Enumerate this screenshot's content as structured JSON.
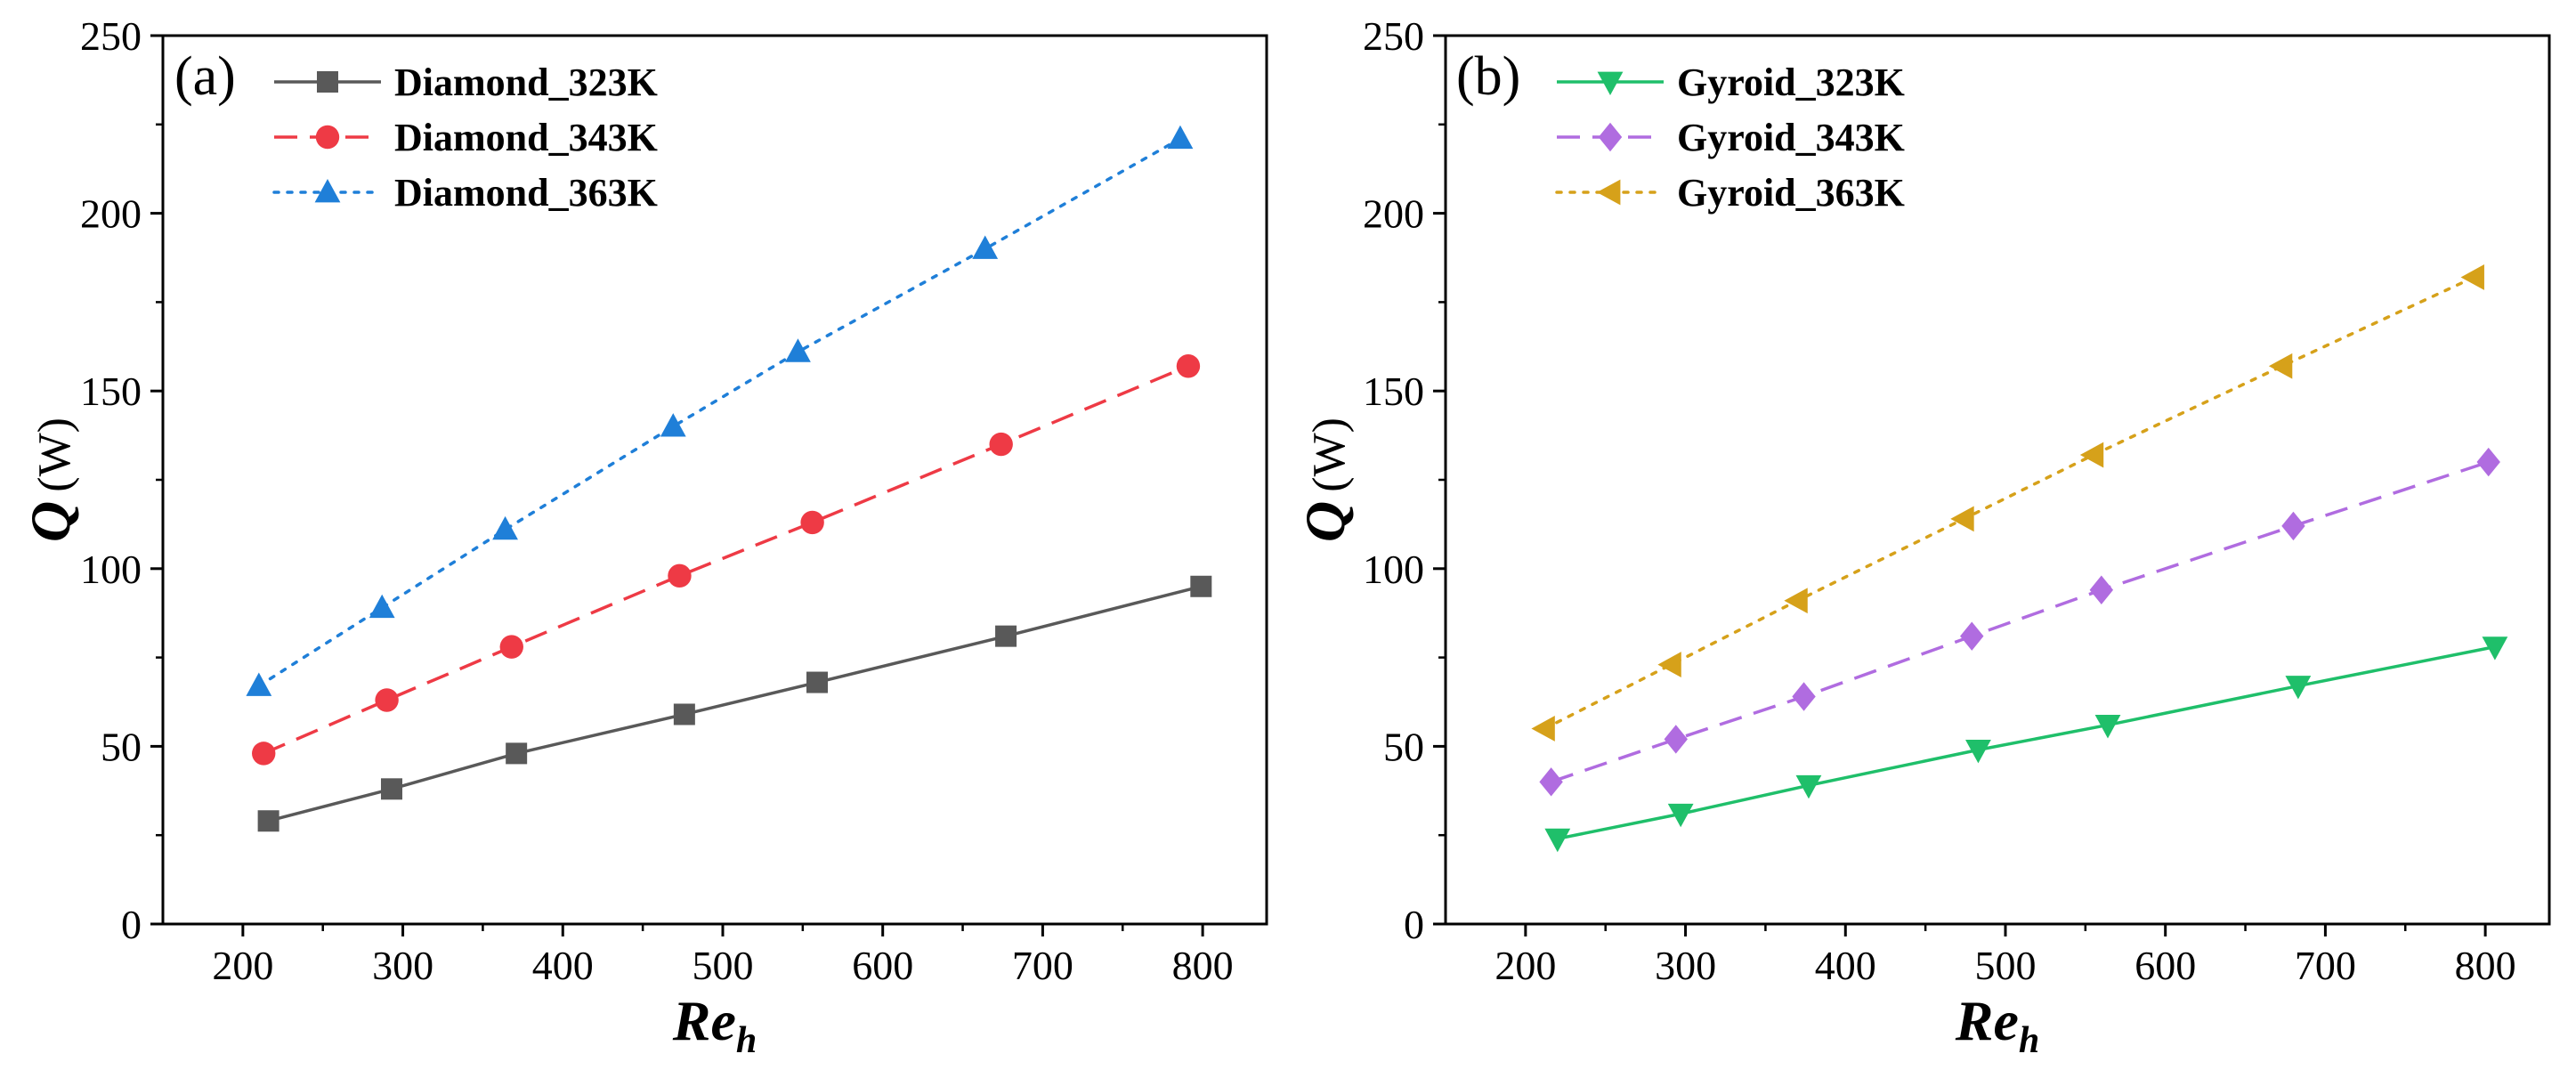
{
  "chart_data": [
    {
      "type": "line",
      "panel_label": "(a)",
      "xlabel": "Re",
      "xlabel_sub": "h",
      "ylabel": "Q",
      "ylabel_unit": "(W)",
      "xlim": [
        150,
        840
      ],
      "ylim": [
        0,
        250
      ],
      "xticks": [
        200,
        300,
        400,
        500,
        600,
        700,
        800
      ],
      "yticks": [
        0,
        50,
        100,
        150,
        200,
        250
      ],
      "legend_position": "top-left",
      "series": [
        {
          "name": "Diamond_323K",
          "color": "#595959",
          "marker": "square",
          "dash": "solid",
          "x": [
            216,
            293,
            371,
            476,
            559,
            677,
            799
          ],
          "y": [
            29,
            38,
            48,
            59,
            68,
            81,
            95
          ]
        },
        {
          "name": "Diamond_343K",
          "color": "#ee3a45",
          "marker": "circle",
          "dash": "dashed",
          "x": [
            213,
            290,
            368,
            473,
            556,
            674,
            791
          ],
          "y": [
            48,
            63,
            78,
            98,
            113,
            135,
            157
          ]
        },
        {
          "name": "Diamond_363K",
          "color": "#1f7fd8",
          "marker": "triangle-up",
          "dash": "dotted",
          "x": [
            210,
            287,
            364,
            469,
            547,
            664,
            786
          ],
          "y": [
            67,
            89,
            111,
            140,
            161,
            190,
            221
          ]
        }
      ]
    },
    {
      "type": "line",
      "panel_label": "(b)",
      "xlabel": "Re",
      "xlabel_sub": "h",
      "ylabel": "Q",
      "ylabel_unit": "(W)",
      "xlim": [
        150,
        840
      ],
      "ylim": [
        0,
        250
      ],
      "xticks": [
        200,
        300,
        400,
        500,
        600,
        700,
        800
      ],
      "yticks": [
        0,
        50,
        100,
        150,
        200,
        250
      ],
      "legend_position": "top-left",
      "series": [
        {
          "name": "Gyroid_323K",
          "color": "#1fbf6a",
          "marker": "triangle-down",
          "dash": "solid",
          "x": [
            220,
            297,
            377,
            483,
            564,
            683,
            806
          ],
          "y": [
            24,
            31,
            39,
            49,
            56,
            67,
            78
          ]
        },
        {
          "name": "Gyroid_343K",
          "color": "#b06ce0",
          "marker": "diamond",
          "dash": "dashed",
          "x": [
            216,
            294,
            374,
            479,
            560,
            680,
            802
          ],
          "y": [
            40,
            52,
            64,
            81,
            94,
            112,
            130
          ]
        },
        {
          "name": "Gyroid_363K",
          "color": "#d6a11a",
          "marker": "triangle-left",
          "dash": "dotted",
          "x": [
            212,
            291,
            370,
            474,
            555,
            673,
            793
          ],
          "y": [
            55,
            73,
            91,
            114,
            132,
            157,
            182
          ]
        }
      ]
    }
  ]
}
